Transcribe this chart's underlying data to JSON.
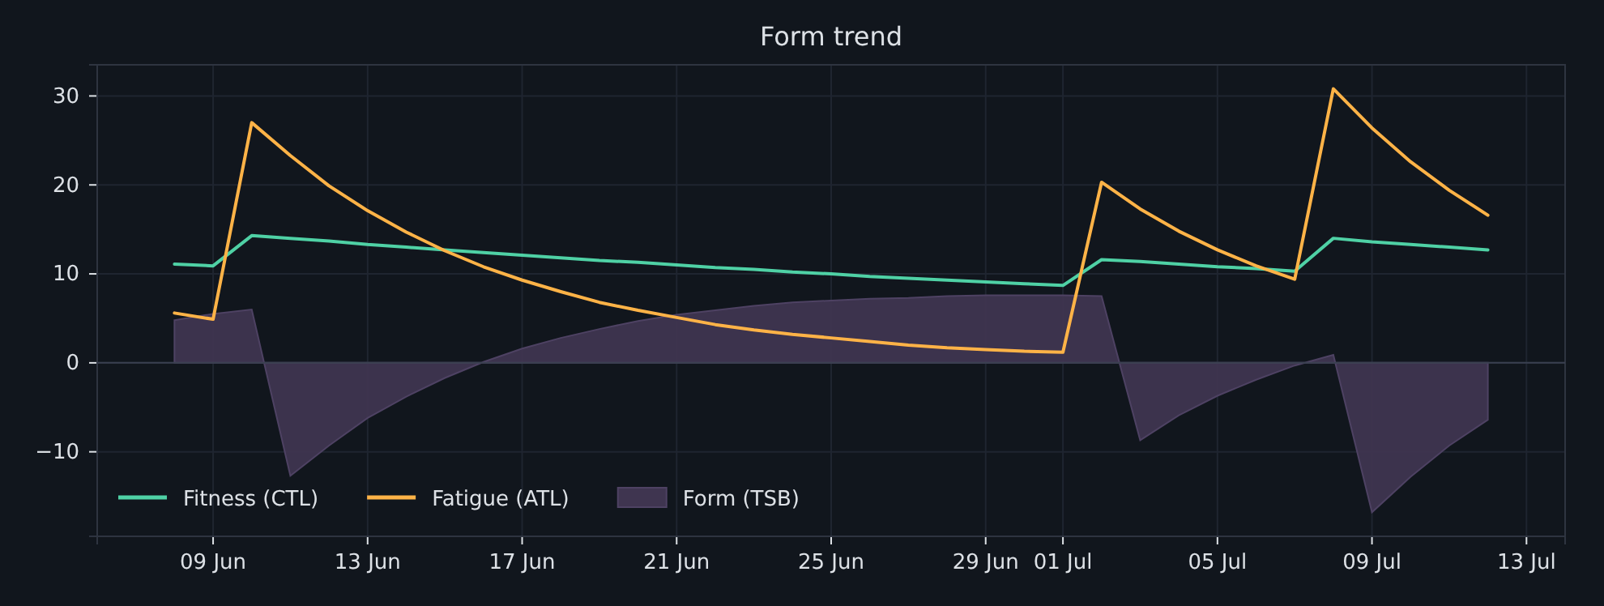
{
  "chart_data": {
    "type": "line",
    "title": "Form trend",
    "x": [
      "--06-08",
      "--06-09",
      "--06-10",
      "--06-11",
      "--06-12",
      "--06-13",
      "--06-14",
      "--06-15",
      "--06-16",
      "--06-17",
      "--06-18",
      "--06-19",
      "--06-20",
      "--06-21",
      "--06-22",
      "--06-23",
      "--06-24",
      "--06-25",
      "--06-26",
      "--06-27",
      "--06-28",
      "--06-29",
      "--06-30",
      "--07-01",
      "--07-02",
      "--07-03",
      "--07-04",
      "--07-05",
      "--07-06",
      "--07-07",
      "--07-08",
      "--07-09",
      "--07-10",
      "--07-11",
      "--07-12"
    ],
    "series": [
      {
        "name": "Fitness (CTL)",
        "color": "#4fd1a5",
        "values": [
          11.1,
          10.9,
          14.3,
          14.0,
          13.7,
          13.3,
          13.0,
          12.7,
          12.4,
          12.1,
          11.8,
          11.5,
          11.3,
          11.0,
          10.7,
          10.5,
          10.2,
          10.0,
          9.7,
          9.5,
          9.3,
          9.1,
          8.9,
          8.7,
          11.6,
          11.4,
          11.1,
          10.8,
          10.6,
          10.3,
          14.0,
          13.6,
          13.3,
          13.0,
          12.7
        ]
      },
      {
        "name": "Fatigue (ATL)",
        "color": "#ffb347",
        "values": [
          5.6,
          4.9,
          27.0,
          23.3,
          19.9,
          17.1,
          14.7,
          12.6,
          10.8,
          9.3,
          8.0,
          6.8,
          5.9,
          5.1,
          4.3,
          3.7,
          3.2,
          2.8,
          2.4,
          2.0,
          1.7,
          1.5,
          1.3,
          1.2,
          20.3,
          17.3,
          14.8,
          12.7,
          10.9,
          9.4,
          30.8,
          26.4,
          22.6,
          19.4,
          16.6
        ]
      },
      {
        "name": "Form (TSB)",
        "type": "area",
        "color": "#3f3550",
        "values": [
          4.8,
          5.5,
          6.0,
          -12.7,
          -9.3,
          -6.2,
          -3.8,
          -1.7,
          0.1,
          1.6,
          2.8,
          3.8,
          4.7,
          5.4,
          5.9,
          6.4,
          6.8,
          7.0,
          7.2,
          7.3,
          7.5,
          7.6,
          7.6,
          7.6,
          7.5,
          -8.7,
          -5.9,
          -3.7,
          -1.9,
          -0.3,
          0.9,
          -16.8,
          -12.8,
          -9.3,
          -6.4
        ]
      }
    ],
    "xlim": [
      "--06-06",
      "--07-14"
    ],
    "xticks": [
      {
        "value": "--06-09",
        "label": "09 Jun"
      },
      {
        "value": "--06-13",
        "label": "13 Jun"
      },
      {
        "value": "--06-17",
        "label": "17 Jun"
      },
      {
        "value": "--06-21",
        "label": "21 Jun"
      },
      {
        "value": "--06-25",
        "label": "25 Jun"
      },
      {
        "value": "--06-29",
        "label": "29 Jun"
      },
      {
        "value": "--07-01",
        "label": "01 Jul"
      },
      {
        "value": "--07-05",
        "label": "05 Jul"
      },
      {
        "value": "--07-09",
        "label": "09 Jul"
      },
      {
        "value": "--07-13",
        "label": "13 Jul"
      }
    ],
    "ylim": [
      -19.5,
      33.5
    ],
    "yticks": [
      {
        "value": -10,
        "label": "−10"
      },
      0,
      10,
      20,
      30
    ],
    "ref_lines": [
      {
        "axis": "y",
        "value": 0,
        "color": "#3a4050"
      }
    ],
    "grid": true,
    "legend": "bottom left"
  }
}
